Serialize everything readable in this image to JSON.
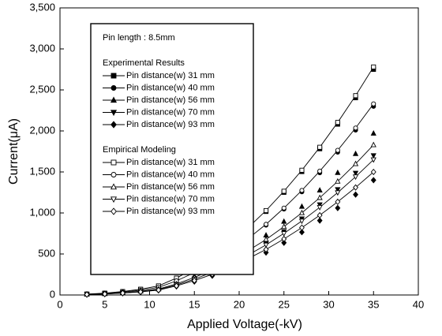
{
  "chart_data": {
    "type": "line",
    "x_label": "Applied Voltage(-kV)",
    "y_label": "Current(μA)",
    "legend_title": "Pin length : 8.5mm",
    "legend_groups": [
      "Experimental Results",
      "Empirical Modeling"
    ],
    "x": [
      3,
      5,
      7,
      9,
      11,
      13,
      15,
      17,
      19,
      21,
      23,
      25,
      27,
      29,
      31,
      33,
      35
    ],
    "xlim": [
      0,
      40
    ],
    "xticks": [
      0,
      5,
      10,
      15,
      20,
      25,
      30,
      35,
      40
    ],
    "ylim": [
      0,
      3500
    ],
    "yticks": [
      0,
      500,
      {
        "value": 1000,
        "label": "1,000"
      },
      {
        "value": 1500,
        "label": "1,500"
      },
      {
        "value": 2000,
        "label": "2,000"
      },
      {
        "value": 2500,
        "label": "2,500"
      },
      {
        "value": 3000,
        "label": "3,000"
      },
      {
        "value": 3500,
        "label": "3,500"
      }
    ],
    "series": [
      {
        "name": "Pin distance(w) 31 mm",
        "group": 0,
        "marker": "square",
        "filled": true,
        "show_line": false,
        "color": "#000000",
        "values": [
          11,
          22,
          41,
          69,
          110,
          204,
          322,
          462,
          624,
          811,
          1018,
          1251,
          1504,
          1782,
          2082,
          2404,
          2750
        ]
      },
      {
        "name": "Pin distance(w) 40 mm",
        "group": 0,
        "marker": "circle",
        "filled": true,
        "show_line": false,
        "color": "#000000",
        "values": [
          9,
          18,
          35,
          58,
          92,
          170,
          269,
          386,
          522,
          679,
          851,
          1047,
          1258,
          1490,
          1741,
          2010,
          2300
        ]
      },
      {
        "name": "Pin distance(w) 56 mm",
        "group": 0,
        "marker": "triangle-up",
        "filled": true,
        "show_line": false,
        "color": "#000000",
        "values": [
          8,
          16,
          30,
          49,
          79,
          146,
          230,
          331,
          447,
          581,
          729,
          896,
          1078,
          1277,
          1491,
          1722,
          1970
        ]
      },
      {
        "name": "Pin distance(w) 70 mm",
        "group": 0,
        "marker": "triangle-down",
        "filled": true,
        "show_line": false,
        "color": "#000000",
        "values": [
          7,
          14,
          26,
          43,
          68,
          126,
          199,
          286,
          386,
          502,
          629,
          774,
          930,
          1102,
          1287,
          1486,
          1700
        ]
      },
      {
        "name": "Pin distance(w) 93 mm",
        "group": 0,
        "marker": "diamond",
        "filled": true,
        "show_line": false,
        "color": "#000000",
        "values": [
          6,
          11,
          21,
          35,
          56,
          104,
          164,
          235,
          318,
          413,
          518,
          637,
          766,
          907,
          1060,
          1224,
          1400
        ]
      },
      {
        "name": "Pin distance(w) 31 mm",
        "group": 1,
        "marker": "square",
        "filled": false,
        "show_line": true,
        "color": "#000000",
        "values": [
          11,
          22,
          42,
          70,
          111,
          206,
          325,
          467,
          631,
          820,
          1029,
          1265,
          1521,
          1801,
          2104,
          2430,
          2780
        ]
      },
      {
        "name": "Pin distance(w) 40 mm",
        "group": 1,
        "marker": "circle",
        "filled": false,
        "show_line": true,
        "color": "#000000",
        "values": [
          9,
          19,
          35,
          58,
          93,
          172,
          273,
          391,
          529,
          687,
          862,
          1060,
          1275,
          1510,
          1764,
          2036,
          2330
        ]
      },
      {
        "name": "Pin distance(w) 56 mm",
        "group": 1,
        "marker": "triangle-up",
        "filled": false,
        "show_line": true,
        "color": "#000000",
        "values": [
          7,
          15,
          27,
          46,
          73,
          135,
          214,
          307,
          415,
          540,
          677,
          833,
          1001,
          1186,
          1385,
          1599,
          1830
        ]
      },
      {
        "name": "Pin distance(w) 70 mm",
        "group": 1,
        "marker": "triangle-down",
        "filled": false,
        "show_line": true,
        "color": "#000000",
        "values": [
          7,
          13,
          25,
          41,
          66,
          122,
          193,
          277,
          375,
          487,
          611,
          751,
          903,
          1069,
          1249,
          1442,
          1650
        ]
      },
      {
        "name": "Pin distance(w) 93 mm",
        "group": 1,
        "marker": "diamond",
        "filled": false,
        "show_line": true,
        "color": "#000000",
        "values": [
          6,
          12,
          23,
          38,
          60,
          111,
          176,
          252,
          341,
          443,
          555,
          683,
          821,
          972,
          1136,
          1311,
          1500
        ]
      }
    ]
  }
}
